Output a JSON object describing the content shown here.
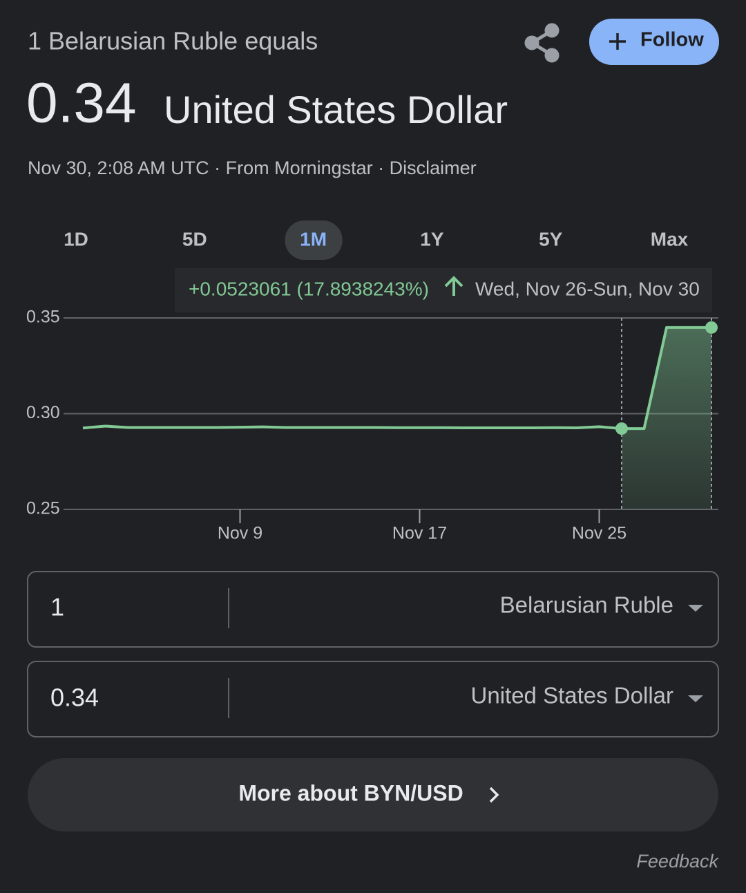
{
  "header": {
    "subtitle": "1 Belarusian Ruble equals",
    "value": "0.34",
    "unit": "United States Dollar",
    "meta": "Nov 30, 2:08 AM UTC · From Morningstar · Disclaimer",
    "follow": "Follow"
  },
  "ranges": {
    "items": [
      "1D",
      "5D",
      "1M",
      "1Y",
      "5Y",
      "Max"
    ],
    "selected": 2
  },
  "chart_data": {
    "type": "line",
    "tooltip": {
      "change": "+0.0523061 (17.8938243%)",
      "period": "Wed, Nov 26-Sun, Nov 30"
    },
    "categories": [
      null,
      null,
      null,
      null,
      null,
      null,
      null,
      "Nov 9",
      null,
      null,
      null,
      null,
      null,
      null,
      null,
      "Nov 17",
      null,
      null,
      null,
      null,
      null,
      null,
      null,
      "Nov 25",
      null,
      null,
      null,
      null,
      null
    ],
    "series": [
      {
        "name": "BYN/USD",
        "color": "#81c995",
        "values": [
          0.2925,
          0.2935,
          0.2928,
          0.2928,
          0.2928,
          0.2928,
          0.2928,
          0.2929,
          0.2931,
          0.2928,
          0.2928,
          0.2928,
          0.2928,
          0.2928,
          0.2927,
          0.2927,
          0.2927,
          0.2926,
          0.2926,
          0.2926,
          0.2926,
          0.2927,
          0.2926,
          0.2932,
          0.2922,
          0.2922,
          0.345,
          0.345,
          0.345
        ]
      }
    ],
    "highlight_start": 24,
    "ylim": [
      0.25,
      0.35
    ],
    "yticks": [
      {
        "value": 0.25,
        "label": "0.25"
      },
      {
        "value": 0.3,
        "label": "0.30"
      },
      {
        "value": 0.35,
        "label": "0.35"
      }
    ],
    "grid": true
  },
  "converter": {
    "from_amount": "1",
    "from_currency": "Belarusian Ruble",
    "to_amount": "0.34",
    "to_currency": "United States Dollar"
  },
  "more_button": "More about BYN/USD",
  "feedback": "Feedback"
}
